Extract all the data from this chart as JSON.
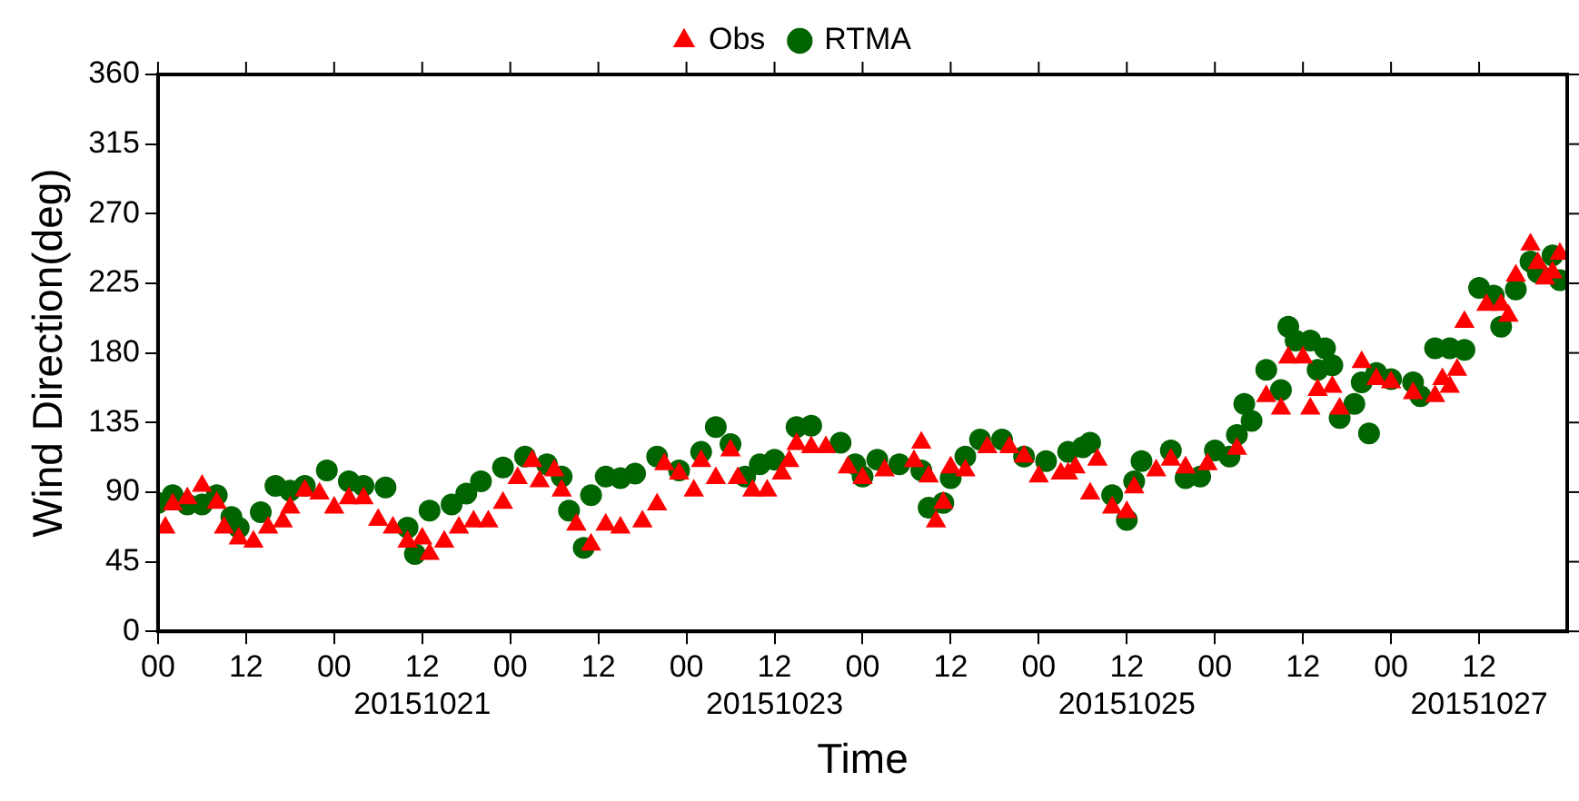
{
  "chart_data": {
    "type": "scatter",
    "xlabel": "Time",
    "ylabel": "Wind Direction(deg)",
    "xlim": [
      "2015-10-20T00:00",
      "2015-10-28T00:00"
    ],
    "xticks": [
      {
        "value": "2015-10-20T00:00",
        "label": "00"
      },
      {
        "value": "2015-10-20T12:00",
        "label": "12"
      },
      {
        "value": "2015-10-21T00:00",
        "label": "00"
      },
      {
        "value": "2015-10-21T12:00",
        "label": "12\n20151021"
      },
      {
        "value": "2015-10-22T00:00",
        "label": "00"
      },
      {
        "value": "2015-10-22T12:00",
        "label": "12"
      },
      {
        "value": "2015-10-23T00:00",
        "label": "00"
      },
      {
        "value": "2015-10-23T12:00",
        "label": "12\n20151023"
      },
      {
        "value": "2015-10-24T00:00",
        "label": "00"
      },
      {
        "value": "2015-10-24T12:00",
        "label": "12"
      },
      {
        "value": "2015-10-25T00:00",
        "label": "00"
      },
      {
        "value": "2015-10-25T12:00",
        "label": "12\n20151025"
      },
      {
        "value": "2015-10-26T00:00",
        "label": "00"
      },
      {
        "value": "2015-10-26T12:00",
        "label": "12"
      },
      {
        "value": "2015-10-27T00:00",
        "label": "00"
      },
      {
        "value": "2015-10-27T12:00",
        "label": "12\n20151027"
      }
    ],
    "ylim": [
      0,
      360
    ],
    "yticks": [
      0,
      45,
      90,
      135,
      180,
      225,
      270,
      315,
      360
    ],
    "grid": false,
    "legend": "top",
    "series": [
      {
        "name": "Obs",
        "color": "#ff0000",
        "marker": "triangle",
        "x": [
          "2015-10-20T01:00",
          "2015-10-20T02:00",
          "2015-10-20T04:00",
          "2015-10-20T06:00",
          "2015-10-20T08:00",
          "2015-10-20T09:00",
          "2015-10-20T11:00",
          "2015-10-20T13:00",
          "2015-10-20T15:00",
          "2015-10-20T17:00",
          "2015-10-20T18:00",
          "2015-10-20T20:00",
          "2015-10-20T22:00",
          "2015-10-21T00:00",
          "2015-10-21T02:00",
          "2015-10-21T04:00",
          "2015-10-21T06:00",
          "2015-10-21T08:00",
          "2015-10-21T10:00",
          "2015-10-21T12:00",
          "2015-10-21T13:00",
          "2015-10-21T15:00",
          "2015-10-21T17:00",
          "2015-10-21T19:00",
          "2015-10-21T21:00",
          "2015-10-21T23:00",
          "2015-10-22T01:00",
          "2015-10-22T03:00",
          "2015-10-22T04:00",
          "2015-10-22T06:00",
          "2015-10-22T07:00",
          "2015-10-22T09:00",
          "2015-10-22T11:00",
          "2015-10-22T13:00",
          "2015-10-22T15:00",
          "2015-10-22T18:00",
          "2015-10-22T20:00",
          "2015-10-22T21:00",
          "2015-10-22T23:00",
          "2015-10-23T01:00",
          "2015-10-23T02:00",
          "2015-10-23T04:00",
          "2015-10-23T06:00",
          "2015-10-23T07:00",
          "2015-10-23T09:00",
          "2015-10-23T11:00",
          "2015-10-23T13:00",
          "2015-10-23T14:00",
          "2015-10-23T15:00",
          "2015-10-23T17:00",
          "2015-10-23T19:00",
          "2015-10-23T22:00",
          "2015-10-24T00:00",
          "2015-10-24T03:00",
          "2015-10-24T07:00",
          "2015-10-24T08:00",
          "2015-10-24T09:00",
          "2015-10-24T10:00",
          "2015-10-24T11:00",
          "2015-10-24T12:00",
          "2015-10-24T14:00",
          "2015-10-24T17:00",
          "2015-10-24T20:00",
          "2015-10-24T22:00",
          "2015-10-25T00:00",
          "2015-10-25T03:00",
          "2015-10-25T04:00",
          "2015-10-25T05:00",
          "2015-10-25T07:00",
          "2015-10-25T08:00",
          "2015-10-25T10:00",
          "2015-10-25T12:00",
          "2015-10-25T13:00",
          "2015-10-25T16:00",
          "2015-10-25T18:00",
          "2015-10-25T20:00",
          "2015-10-25T23:00",
          "2015-10-26T03:00",
          "2015-10-26T07:00",
          "2015-10-26T09:00",
          "2015-10-26T10:00",
          "2015-10-26T12:00",
          "2015-10-26T13:00",
          "2015-10-26T14:00",
          "2015-10-26T16:00",
          "2015-10-26T17:00",
          "2015-10-26T20:00",
          "2015-10-26T22:00",
          "2015-10-27T00:00",
          "2015-10-27T03:00",
          "2015-10-27T06:00",
          "2015-10-27T07:00",
          "2015-10-27T08:00",
          "2015-10-27T09:00",
          "2015-10-27T10:00",
          "2015-10-27T13:00",
          "2015-10-27T15:00",
          "2015-10-27T16:00",
          "2015-10-27T17:00",
          "2015-10-27T19:00",
          "2015-10-27T20:00",
          "2015-10-27T21:00",
          "2015-10-27T22:00",
          "2015-10-27T23:00"
        ],
        "values": [
          67,
          82,
          86,
          94,
          83,
          67,
          60,
          58,
          67,
          71,
          80,
          91,
          89,
          80,
          86,
          86,
          72,
          67,
          58,
          60,
          50,
          58,
          67,
          71,
          71,
          83,
          99,
          110,
          97,
          104,
          91,
          69,
          56,
          69,
          67,
          71,
          82,
          108,
          102,
          91,
          110,
          99,
          117,
          99,
          91,
          91,
          102,
          110,
          121,
          119,
          119,
          106,
          99,
          104,
          110,
          122,
          100,
          71,
          83,
          106,
          104,
          119,
          119,
          113,
          100,
          102,
          102,
          106,
          89,
          111,
          80,
          77,
          93,
          104,
          111,
          106,
          108,
          118,
          152,
          144,
          177,
          177,
          144,
          156,
          158,
          144,
          174,
          163,
          161,
          154,
          152,
          163,
          158,
          169,
          200,
          211,
          211,
          204,
          230,
          250,
          238,
          228,
          232,
          244
        ]
      },
      {
        "name": "RTMA",
        "color": "#006400",
        "marker": "circle",
        "x": [
          "2015-10-20T00:00",
          "2015-10-20T02:00",
          "2015-10-20T04:00",
          "2015-10-20T06:00",
          "2015-10-20T08:00",
          "2015-10-20T10:00",
          "2015-10-20T11:00",
          "2015-10-20T14:00",
          "2015-10-20T16:00",
          "2015-10-20T18:00",
          "2015-10-20T20:00",
          "2015-10-20T23:00",
          "2015-10-21T02:00",
          "2015-10-21T04:00",
          "2015-10-21T07:00",
          "2015-10-21T10:00",
          "2015-10-21T11:00",
          "2015-10-21T13:00",
          "2015-10-21T16:00",
          "2015-10-21T18:00",
          "2015-10-21T20:00",
          "2015-10-21T23:00",
          "2015-10-22T02:00",
          "2015-10-22T05:00",
          "2015-10-22T07:00",
          "2015-10-22T08:00",
          "2015-10-22T10:00",
          "2015-10-22T11:00",
          "2015-10-22T13:00",
          "2015-10-22T15:00",
          "2015-10-22T17:00",
          "2015-10-22T20:00",
          "2015-10-22T23:00",
          "2015-10-23T02:00",
          "2015-10-23T04:00",
          "2015-10-23T06:00",
          "2015-10-23T08:00",
          "2015-10-23T10:00",
          "2015-10-23T12:00",
          "2015-10-23T15:00",
          "2015-10-23T17:00",
          "2015-10-23T21:00",
          "2015-10-23T23:00",
          "2015-10-24T00:00",
          "2015-10-24T02:00",
          "2015-10-24T05:00",
          "2015-10-24T08:00",
          "2015-10-24T09:00",
          "2015-10-24T11:00",
          "2015-10-24T12:00",
          "2015-10-24T14:00",
          "2015-10-24T16:00",
          "2015-10-24T19:00",
          "2015-10-24T22:00",
          "2015-10-25T01:00",
          "2015-10-25T04:00",
          "2015-10-25T06:00",
          "2015-10-25T07:00",
          "2015-10-25T10:00",
          "2015-10-25T12:00",
          "2015-10-25T13:00",
          "2015-10-25T14:00",
          "2015-10-25T18:00",
          "2015-10-25T20:00",
          "2015-10-25T22:00",
          "2015-10-26T00:00",
          "2015-10-26T02:00",
          "2015-10-26T03:00",
          "2015-10-26T04:00",
          "2015-10-26T05:00",
          "2015-10-26T07:00",
          "2015-10-26T09:00",
          "2015-10-26T10:00",
          "2015-10-26T11:00",
          "2015-10-26T13:00",
          "2015-10-26T14:00",
          "2015-10-26T15:00",
          "2015-10-26T16:00",
          "2015-10-26T17:00",
          "2015-10-26T19:00",
          "2015-10-26T20:00",
          "2015-10-26T21:00",
          "2015-10-26T22:00",
          "2015-10-27T00:00",
          "2015-10-27T03:00",
          "2015-10-27T04:00",
          "2015-10-27T06:00",
          "2015-10-27T08:00",
          "2015-10-27T10:00",
          "2015-10-27T12:00",
          "2015-10-27T14:00",
          "2015-10-27T15:00",
          "2015-10-27T17:00",
          "2015-10-27T19:00",
          "2015-10-27T20:00",
          "2015-10-27T22:00",
          "2015-10-27T23:00"
        ],
        "values": [
          83,
          88,
          82,
          82,
          88,
          74,
          67,
          77,
          94,
          91,
          94,
          104,
          97,
          94,
          93,
          67,
          50,
          78,
          82,
          89,
          97,
          106,
          113,
          108,
          100,
          78,
          54,
          88,
          100,
          99,
          102,
          113,
          104,
          116,
          132,
          121,
          100,
          108,
          111,
          132,
          133,
          122,
          108,
          100,
          111,
          108,
          104,
          80,
          83,
          99,
          113,
          124,
          124,
          113,
          110,
          116,
          119,
          122,
          88,
          72,
          97,
          110,
          117,
          99,
          100,
          117,
          113,
          127,
          147,
          136,
          169,
          156,
          197,
          188,
          188,
          169,
          183,
          172,
          138,
          147,
          161,
          128,
          167,
          163,
          161,
          152,
          183,
          183,
          182,
          222,
          217,
          197,
          221,
          239,
          232,
          243,
          227
        ]
      }
    ]
  }
}
